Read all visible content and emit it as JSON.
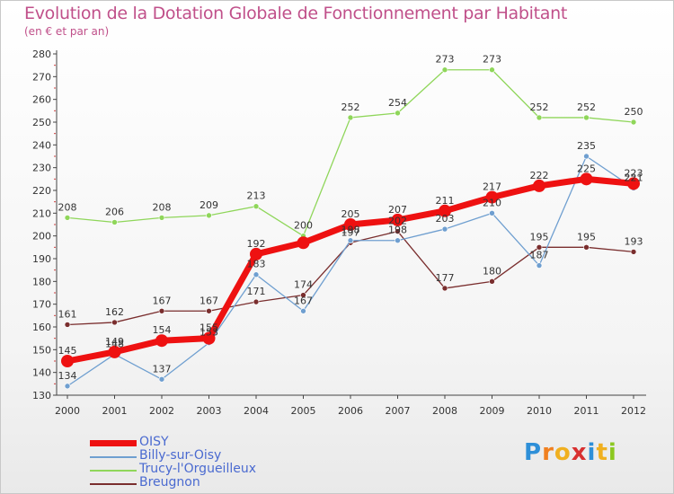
{
  "title": "Evolution de la Dotation Globale de Fonctionnement par Habitant",
  "subtitle": "(en € et par an)",
  "logo": {
    "text": "Proxiti",
    "letters": [
      "P",
      "r",
      "o",
      "x",
      "i",
      "t",
      "i"
    ],
    "colors": [
      "#2e8fd8",
      "#f08020",
      "#f0b020",
      "#d83030",
      "#2e8fd8",
      "#f0b020",
      "#8cc820"
    ]
  },
  "chart_data": {
    "type": "line",
    "title": "Evolution de la Dotation Globale de Fonctionnement par Habitant",
    "ylabel": "(en € et par an)",
    "xlabel": "",
    "x": [
      "2000",
      "2001",
      "2002",
      "2003",
      "2004",
      "2005",
      "2006",
      "2007",
      "2008",
      "2009",
      "2010",
      "2011",
      "2012"
    ],
    "ylim": [
      130,
      280
    ],
    "yticks": [
      130,
      140,
      150,
      160,
      170,
      180,
      190,
      200,
      210,
      220,
      230,
      240,
      250,
      260,
      270,
      280
    ],
    "grid": false,
    "legend_position": "bottom-left",
    "series": [
      {
        "name": "OISY",
        "color": "#ee1111",
        "width": 7,
        "marker": 7,
        "values": [
          145,
          149,
          154,
          155,
          192,
          197,
          205,
          207,
          211,
          217,
          222,
          225,
          223
        ],
        "labels": [
          "145",
          "149",
          "154",
          "155",
          "192",
          "",
          "205",
          "207",
          "211",
          "217",
          "222",
          "225",
          "223"
        ]
      },
      {
        "name": "Billy-sur-Oisy",
        "color": "#6f9fd0",
        "width": 1.3,
        "marker": 3,
        "values": [
          134,
          148,
          137,
          153,
          183,
          167,
          198,
          198,
          203,
          210,
          187,
          235,
          221
        ],
        "labels": [
          "134",
          "148",
          "137",
          "153",
          "183",
          "167",
          "198",
          "198",
          "203",
          "210",
          "187",
          "235",
          "221"
        ]
      },
      {
        "name": "Trucy-l'Orgueilleux",
        "color": "#8fd65a",
        "width": 1.3,
        "marker": 3,
        "values": [
          208,
          206,
          208,
          209,
          213,
          200,
          252,
          254,
          273,
          273,
          252,
          252,
          250
        ],
        "labels": [
          "208",
          "206",
          "208",
          "209",
          "213",
          "200",
          "252",
          "254",
          "273",
          "273",
          "252",
          "252",
          "250"
        ]
      },
      {
        "name": "Breugnon",
        "color": "#7a2e2e",
        "width": 1.3,
        "marker": 3,
        "values": [
          161,
          162,
          167,
          167,
          171,
          174,
          197,
          202,
          177,
          180,
          195,
          195,
          193
        ],
        "labels": [
          "161",
          "162",
          "167",
          "167",
          "171",
          "174",
          "197",
          "202",
          "177",
          "180",
          "195",
          "195",
          "193"
        ]
      }
    ]
  }
}
